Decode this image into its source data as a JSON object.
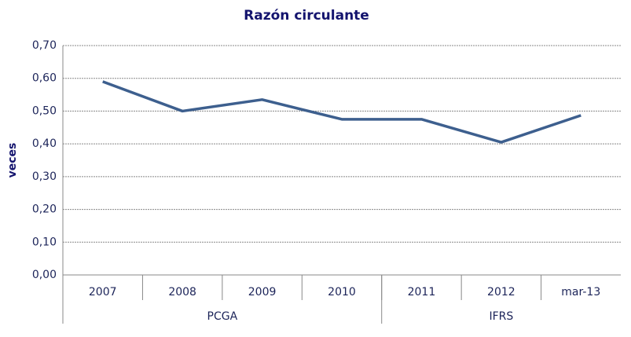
{
  "chart_data": {
    "type": "line",
    "title": "Razón circulante",
    "y_label": "veces",
    "categories": [
      "2007",
      "2008",
      "2009",
      "2010",
      "2011",
      "2012",
      "mar-13"
    ],
    "groups": [
      {
        "label": "PCGA",
        "count": 4
      },
      {
        "label": "IFRS",
        "count": 3
      }
    ],
    "series": [
      {
        "name": "Razón circulante",
        "color": "#3d5f8e",
        "values": [
          0.59,
          0.5,
          0.535,
          0.475,
          0.475,
          0.405,
          0.487
        ]
      }
    ],
    "ylim": [
      0,
      0.7
    ],
    "yticks": [
      {
        "value": 0,
        "label": "0,00"
      },
      {
        "value": 0.1,
        "label": "0,10"
      },
      {
        "value": 0.2,
        "label": "0,20"
      },
      {
        "value": 0.3,
        "label": "0,30"
      },
      {
        "value": 0.4,
        "label": "0,40"
      },
      {
        "value": 0.5,
        "label": "0,50"
      },
      {
        "value": 0.6,
        "label": "0,60"
      },
      {
        "value": 0.7,
        "label": "0,70"
      }
    ],
    "grid": true
  }
}
